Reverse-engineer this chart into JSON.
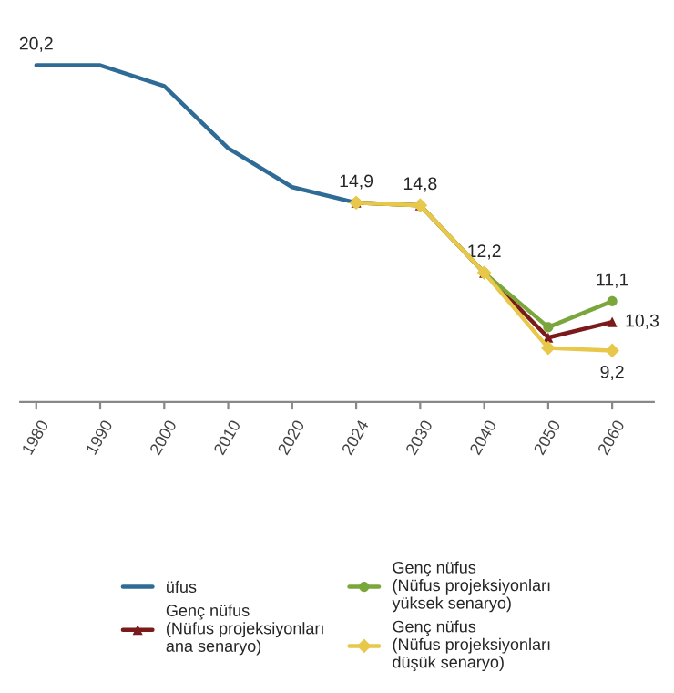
{
  "chart_data": {
    "type": "line",
    "categories": [
      "1980",
      "1990",
      "2000",
      "2010",
      "2020",
      "2024",
      "2030",
      "2040",
      "2050",
      "2060"
    ],
    "tick_labels": "x",
    "grid": false,
    "legend": "bottom",
    "series": [
      {
        "name": "üfus",
        "color": "#2e6b96",
        "marker": "none",
        "values": [
          20.2,
          20.2,
          19.4,
          17.0,
          15.5,
          14.9,
          null,
          null,
          null,
          null
        ],
        "value_labels": [
          "20,2",
          null,
          null,
          null,
          null,
          null,
          null,
          null,
          null,
          null
        ]
      },
      {
        "name": "Genç nüfus\n(Nüfus projeksiyonları\nana senaryo)",
        "color": "#7a1a1a",
        "marker": "triangle",
        "values": [
          null,
          null,
          null,
          null,
          null,
          14.9,
          14.8,
          12.2,
          9.7,
          10.3
        ],
        "value_labels": [
          null,
          null,
          null,
          null,
          null,
          "14,9",
          "14,8",
          "12,2",
          null,
          "10,3"
        ]
      },
      {
        "name": "Genç nüfus\n(Nüfus projeksiyonları\nyüksek senaryo)",
        "color": "#7aa63c",
        "marker": "circle",
        "values": [
          null,
          null,
          null,
          null,
          null,
          14.9,
          14.8,
          12.2,
          10.1,
          11.1
        ],
        "value_labels": [
          null,
          null,
          null,
          null,
          null,
          null,
          null,
          null,
          null,
          "11,1"
        ]
      },
      {
        "name": "Genç nüfus\n(Nüfus projeksiyonları\ndüşük senaryo)",
        "color": "#e8c84a",
        "marker": "diamond",
        "values": [
          null,
          null,
          null,
          null,
          null,
          14.9,
          14.8,
          12.2,
          9.3,
          9.2
        ],
        "value_labels": [
          null,
          null,
          null,
          null,
          null,
          null,
          null,
          null,
          null,
          "9,2"
        ]
      }
    ]
  }
}
